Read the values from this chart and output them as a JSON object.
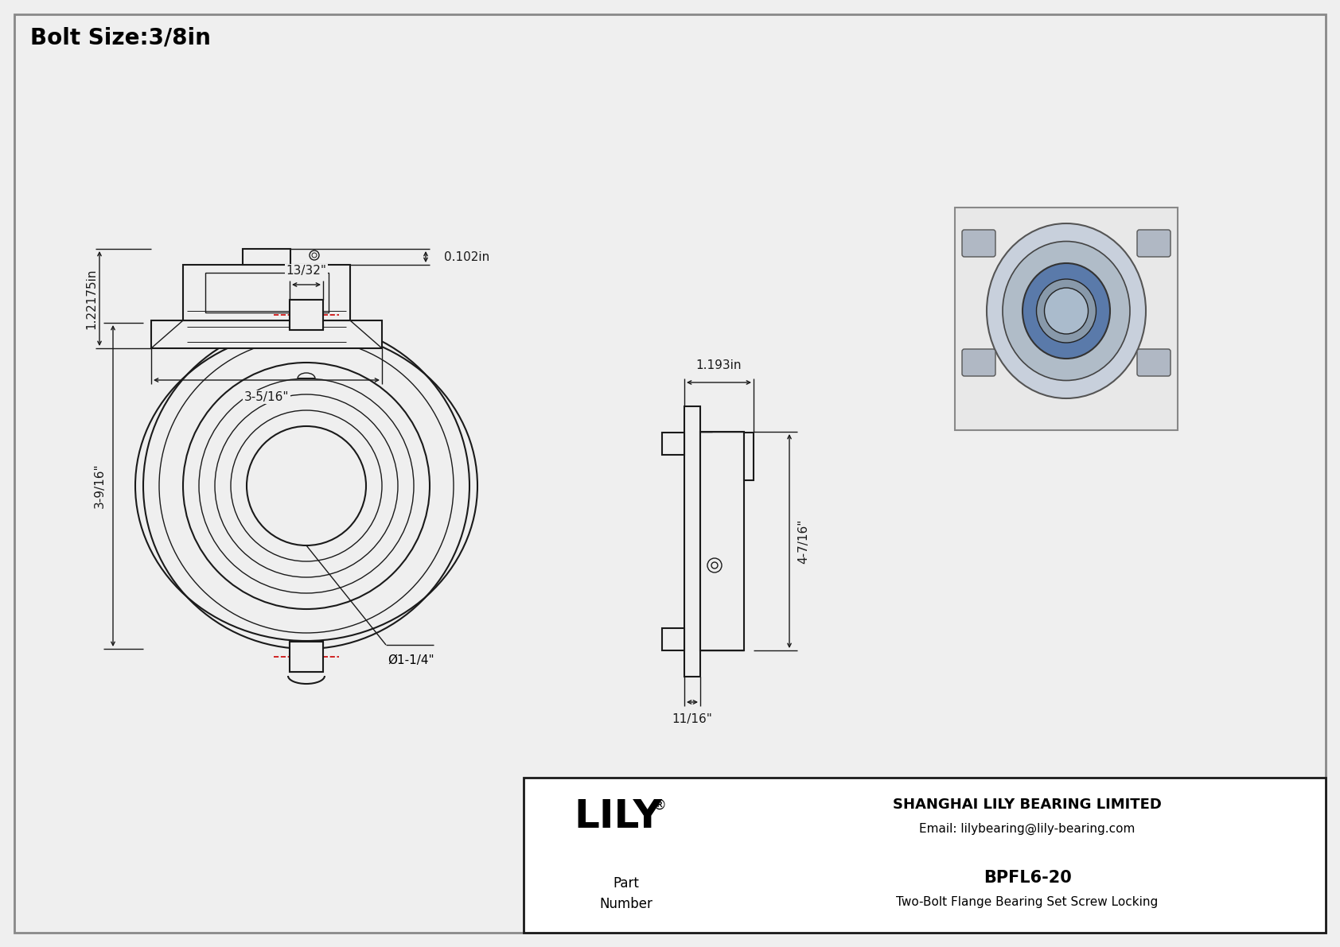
{
  "title": "Bolt Size:3/8in",
  "bg_color": "#efefef",
  "line_color": "#1a1a1a",
  "white_color": "#ffffff",
  "red_dash_color": "#cc0000",
  "company_name": "SHANGHAI LILY BEARING LIMITED",
  "company_email": "Email: lilybearing@lily-bearing.com",
  "part_number": "BPFL6-20",
  "part_description": "Two-Bolt Flange Bearing Set Screw Locking",
  "lily_text": "LILY",
  "dim_bolt_width": "13/32\"",
  "dim_height": "3-9/16\"",
  "dim_bore": "Ø1-1/4\"",
  "dim_side_width": "1.193in",
  "dim_side_height": "4-7/16\"",
  "dim_side_bottom": "11/16\"",
  "dim_bottom_height": "0.102in",
  "dim_bottom_label": "1.22175in",
  "dim_bottom_width": "3-5/16\""
}
